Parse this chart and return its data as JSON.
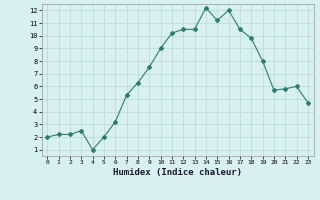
{
  "x": [
    0,
    1,
    2,
    3,
    4,
    5,
    6,
    7,
    8,
    9,
    10,
    11,
    12,
    13,
    14,
    15,
    16,
    17,
    18,
    19,
    20,
    21,
    22,
    23
  ],
  "y": [
    2.0,
    2.2,
    2.2,
    2.5,
    1.0,
    2.0,
    3.2,
    5.3,
    6.3,
    7.5,
    9.0,
    10.2,
    10.5,
    10.5,
    12.2,
    11.2,
    12.0,
    10.5,
    9.8,
    8.0,
    5.7,
    5.8,
    6.0,
    4.7
  ],
  "xlabel": "Humidex (Indice chaleur)",
  "line_color": "#2d7d6e",
  "marker": "D",
  "marker_size": 2,
  "bg_color": "#d8f0f0",
  "grid_color": "#b8d8d8",
  "xlim": [
    -0.5,
    23.5
  ],
  "ylim": [
    0.5,
    12.5
  ],
  "yticks": [
    1,
    2,
    3,
    4,
    5,
    6,
    7,
    8,
    9,
    10,
    11,
    12
  ],
  "xticks": [
    0,
    1,
    2,
    3,
    4,
    5,
    6,
    7,
    8,
    9,
    10,
    11,
    12,
    13,
    14,
    15,
    16,
    17,
    18,
    19,
    20,
    21,
    22,
    23
  ]
}
